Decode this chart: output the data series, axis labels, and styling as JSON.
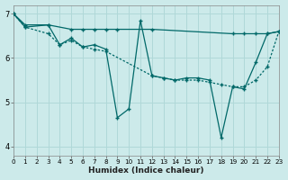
{
  "xlabel": "Humidex (Indice chaleur)",
  "ylabel": "",
  "background_color": "#cceaea",
  "line_color": "#006868",
  "grid_color": "#b0d8d8",
  "xlim": [
    0,
    23
  ],
  "ylim": [
    3.8,
    7.2
  ],
  "xticks": [
    0,
    1,
    2,
    3,
    4,
    5,
    6,
    7,
    8,
    9,
    10,
    11,
    12,
    13,
    14,
    15,
    16,
    17,
    18,
    19,
    20,
    21,
    22,
    23
  ],
  "yticks": [
    4,
    5,
    6,
    7
  ],
  "series_flat": {
    "x": [
      0,
      1,
      3,
      5,
      6,
      7,
      8,
      9,
      12,
      19,
      20,
      21,
      22,
      23
    ],
    "y": [
      7.0,
      6.75,
      6.75,
      6.65,
      6.65,
      6.65,
      6.65,
      6.65,
      6.65,
      6.55,
      6.55,
      6.55,
      6.55,
      6.6
    ]
  },
  "series_diagonal": {
    "x": [
      0,
      1,
      3,
      4,
      5,
      6,
      7,
      8,
      12,
      13,
      14,
      15,
      16,
      17,
      18,
      19,
      20,
      21,
      22,
      23
    ],
    "y": [
      7.0,
      6.7,
      6.55,
      6.3,
      6.4,
      6.25,
      6.2,
      6.15,
      5.6,
      5.55,
      5.5,
      5.5,
      5.5,
      5.45,
      5.4,
      5.35,
      5.35,
      5.5,
      5.8,
      6.6
    ]
  },
  "series_zigzag": {
    "x": [
      0,
      1,
      3,
      4,
      5,
      6,
      7,
      8,
      9,
      10,
      11,
      12,
      13,
      14,
      15,
      16,
      17,
      18,
      19,
      20,
      21,
      22,
      23
    ],
    "y": [
      7.0,
      6.7,
      6.75,
      6.3,
      6.45,
      6.25,
      6.3,
      6.2,
      4.65,
      4.85,
      6.85,
      5.6,
      5.55,
      5.5,
      5.55,
      5.55,
      5.5,
      4.2,
      5.35,
      5.3,
      5.9,
      6.55,
      6.6
    ]
  }
}
